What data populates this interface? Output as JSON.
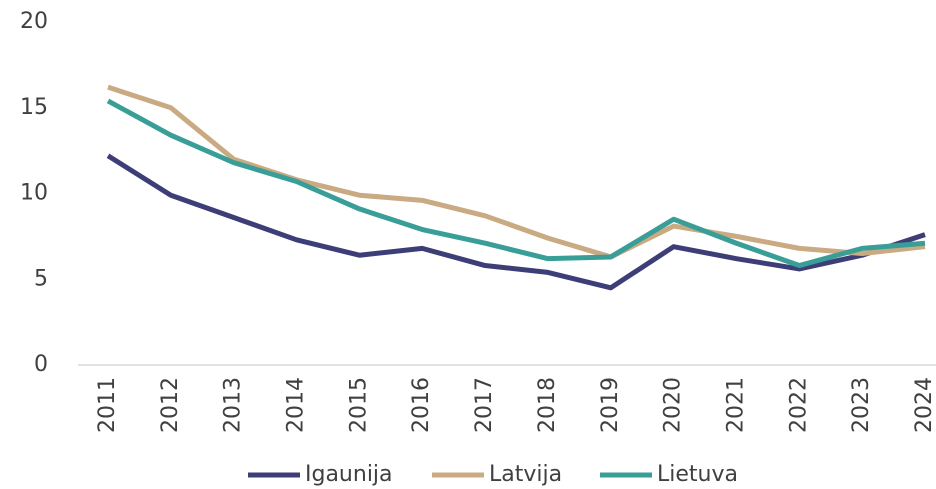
{
  "chart_data": {
    "type": "line",
    "categories": [
      "2011",
      "2012",
      "2013",
      "2014",
      "2015",
      "2016",
      "2017",
      "2018",
      "2019",
      "2020",
      "2021",
      "2022",
      "2023",
      "2024"
    ],
    "series": [
      {
        "name": "Igaunija",
        "color": "#3d3d78",
        "values": [
          12.2,
          9.9,
          8.6,
          7.3,
          6.4,
          6.8,
          5.8,
          5.4,
          4.5,
          6.9,
          6.2,
          5.6,
          6.4,
          7.6
        ]
      },
      {
        "name": "Latvija",
        "color": "#c9aa82",
        "values": [
          16.2,
          15.0,
          12.0,
          10.8,
          9.9,
          9.6,
          8.7,
          7.4,
          6.3,
          8.1,
          7.5,
          6.8,
          6.5,
          6.9
        ]
      },
      {
        "name": "Lietuva",
        "color": "#3a9e98",
        "values": [
          15.4,
          13.4,
          11.8,
          10.7,
          9.1,
          7.9,
          7.1,
          6.2,
          6.3,
          8.5,
          7.1,
          5.8,
          6.8,
          7.1
        ]
      }
    ],
    "ylim": [
      0,
      20
    ],
    "yticks": [
      0,
      5,
      10,
      15,
      20
    ],
    "legend": "bottom"
  }
}
